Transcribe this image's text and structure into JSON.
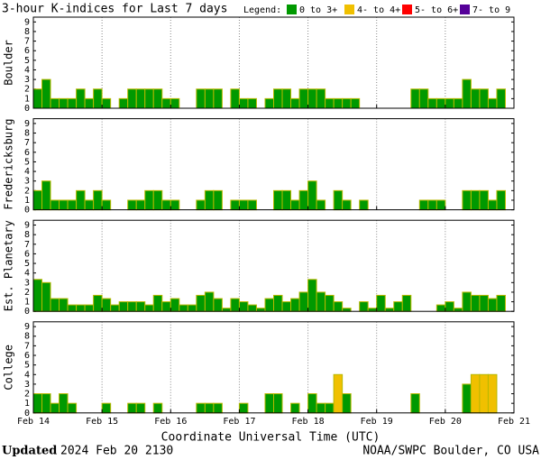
{
  "title": "3-hour K-indices for Last 7 days",
  "legend": {
    "title": "Legend:",
    "items": [
      {
        "label": "0 to 3+",
        "color": "#009900"
      },
      {
        "label": "4- to 4+",
        "color": "#f0c000"
      },
      {
        "label": "5- to 6+",
        "color": "#ff0000"
      },
      {
        "label": "7- to 9",
        "color": "#550099"
      }
    ]
  },
  "x_labels": [
    "Feb 14",
    "Feb 15",
    "Feb 16",
    "Feb 17",
    "Feb 18",
    "Feb 19",
    "Feb 20",
    "Feb 21"
  ],
  "xlabel": "Coordinate Universal Time (UTC)",
  "footer": {
    "updated_label": "Updated",
    "updated": "2024 Feb 20 2130",
    "credit": "NOAA/SWPC Boulder, CO USA"
  },
  "chart_data": [
    {
      "type": "bar",
      "ylabel": "Boulder",
      "ylim": [
        0,
        9.5
      ],
      "yticks": [
        0,
        1,
        2,
        3,
        4,
        5,
        6,
        7,
        8,
        9
      ],
      "grid": true,
      "values": [
        2,
        3,
        1,
        1,
        1,
        2,
        1,
        2,
        1,
        0,
        1,
        2,
        2,
        2,
        2,
        1,
        1,
        0,
        0,
        2,
        2,
        2,
        0,
        2,
        1,
        1,
        0,
        1,
        2,
        2,
        1,
        2,
        2,
        2,
        1,
        1,
        1,
        1,
        0,
        0,
        0,
        0,
        0,
        0,
        2,
        2,
        1,
        1,
        1,
        1,
        3,
        2,
        2,
        1,
        2,
        null
      ],
      "colors": [
        "#009900",
        "#009900",
        "#009900",
        "#009900",
        "#009900",
        "#009900",
        "#009900",
        "#009900",
        "#009900",
        "#009900",
        "#009900",
        "#009900",
        "#009900",
        "#009900",
        "#009900",
        "#009900",
        "#009900",
        "#009900",
        "#009900",
        "#009900",
        "#009900",
        "#009900",
        "#009900",
        "#009900",
        "#009900",
        "#009900",
        "#009900",
        "#009900",
        "#009900",
        "#009900",
        "#009900",
        "#009900",
        "#009900",
        "#009900",
        "#009900",
        "#009900",
        "#009900",
        "#009900",
        "#009900",
        "#009900",
        "#009900",
        "#009900",
        "#009900",
        "#009900",
        "#009900",
        "#009900",
        "#009900",
        "#009900",
        "#009900",
        "#009900",
        "#009900",
        "#009900",
        "#009900",
        "#009900",
        "#009900",
        "#009900"
      ]
    },
    {
      "type": "bar",
      "ylabel": "Fredericksburg",
      "ylim": [
        0,
        9.5
      ],
      "yticks": [
        0,
        1,
        2,
        3,
        4,
        5,
        6,
        7,
        8,
        9
      ],
      "grid": true,
      "values": [
        2,
        3,
        1,
        1,
        1,
        2,
        1,
        2,
        1,
        0,
        0,
        1,
        1,
        2,
        2,
        1,
        1,
        0,
        0,
        1,
        2,
        2,
        0,
        1,
        1,
        1,
        0,
        0,
        2,
        2,
        1,
        2,
        3,
        1,
        0,
        2,
        1,
        0,
        1,
        0,
        0,
        0,
        0,
        0,
        0,
        1,
        1,
        1,
        0,
        0,
        2,
        2,
        2,
        1,
        2,
        null
      ],
      "colors": [
        "#009900",
        "#009900",
        "#009900",
        "#009900",
        "#009900",
        "#009900",
        "#009900",
        "#009900",
        "#009900",
        "#009900",
        "#009900",
        "#009900",
        "#009900",
        "#009900",
        "#009900",
        "#009900",
        "#009900",
        "#009900",
        "#009900",
        "#009900",
        "#009900",
        "#009900",
        "#009900",
        "#009900",
        "#009900",
        "#009900",
        "#009900",
        "#009900",
        "#009900",
        "#009900",
        "#009900",
        "#009900",
        "#009900",
        "#009900",
        "#009900",
        "#009900",
        "#009900",
        "#009900",
        "#009900",
        "#009900",
        "#009900",
        "#009900",
        "#009900",
        "#009900",
        "#009900",
        "#009900",
        "#009900",
        "#009900",
        "#009900",
        "#009900",
        "#009900",
        "#009900",
        "#009900",
        "#009900",
        "#009900",
        "#009900"
      ]
    },
    {
      "type": "bar",
      "ylabel": "Est. Planetary",
      "ylim": [
        0,
        9.5
      ],
      "yticks": [
        0,
        1,
        2,
        3,
        4,
        5,
        6,
        7,
        8,
        9
      ],
      "grid": true,
      "values": [
        3.33,
        3,
        1.33,
        1.33,
        0.67,
        0.67,
        0.67,
        1.67,
        1.33,
        0.67,
        1,
        1,
        1,
        0.67,
        1.67,
        1,
        1.33,
        0.67,
        0.67,
        1.67,
        2,
        1.33,
        0.33,
        1.33,
        1,
        0.67,
        0.33,
        1.33,
        1.67,
        1,
        1.33,
        2,
        3.33,
        2,
        1.67,
        1,
        0.33,
        0,
        1,
        0.33,
        1.67,
        0.33,
        1,
        1.67,
        0,
        0,
        0,
        0.67,
        1,
        0.33,
        2,
        1.67,
        1.67,
        1.33,
        1.67,
        null
      ],
      "colors": [
        "#009900",
        "#009900",
        "#009900",
        "#009900",
        "#009900",
        "#009900",
        "#009900",
        "#009900",
        "#009900",
        "#009900",
        "#009900",
        "#009900",
        "#009900",
        "#009900",
        "#009900",
        "#009900",
        "#009900",
        "#009900",
        "#009900",
        "#009900",
        "#009900",
        "#009900",
        "#009900",
        "#009900",
        "#009900",
        "#009900",
        "#009900",
        "#009900",
        "#009900",
        "#009900",
        "#009900",
        "#009900",
        "#009900",
        "#009900",
        "#009900",
        "#009900",
        "#009900",
        "#009900",
        "#009900",
        "#009900",
        "#009900",
        "#009900",
        "#009900",
        "#009900",
        "#009900",
        "#009900",
        "#009900",
        "#009900",
        "#009900",
        "#009900",
        "#009900",
        "#009900",
        "#009900",
        "#009900",
        "#009900",
        "#009900"
      ]
    },
    {
      "type": "bar",
      "ylabel": "College",
      "ylim": [
        0,
        9.5
      ],
      "yticks": [
        0,
        1,
        2,
        3,
        4,
        5,
        6,
        7,
        8,
        9
      ],
      "grid": true,
      "values": [
        2,
        2,
        1,
        2,
        1,
        0,
        0,
        0,
        1,
        0,
        0,
        1,
        1,
        0,
        1,
        0,
        0,
        0,
        0,
        1,
        1,
        1,
        0,
        0,
        1,
        0,
        0,
        2,
        2,
        0,
        1,
        0,
        2,
        1,
        1,
        4,
        2,
        0,
        0,
        0,
        0,
        0,
        0,
        0,
        2,
        0,
        0,
        0,
        0,
        0,
        3,
        4,
        4,
        4,
        0,
        null
      ],
      "colors": [
        "#009900",
        "#009900",
        "#009900",
        "#009900",
        "#009900",
        "#009900",
        "#009900",
        "#009900",
        "#009900",
        "#009900",
        "#009900",
        "#009900",
        "#009900",
        "#009900",
        "#009900",
        "#009900",
        "#009900",
        "#009900",
        "#009900",
        "#009900",
        "#009900",
        "#009900",
        "#009900",
        "#009900",
        "#009900",
        "#009900",
        "#009900",
        "#009900",
        "#009900",
        "#009900",
        "#009900",
        "#009900",
        "#009900",
        "#009900",
        "#009900",
        "#f0c000",
        "#009900",
        "#009900",
        "#009900",
        "#009900",
        "#009900",
        "#009900",
        "#009900",
        "#009900",
        "#009900",
        "#009900",
        "#009900",
        "#009900",
        "#009900",
        "#009900",
        "#009900",
        "#f0c000",
        "#f0c000",
        "#f0c000",
        "#009900",
        "#009900"
      ]
    }
  ]
}
